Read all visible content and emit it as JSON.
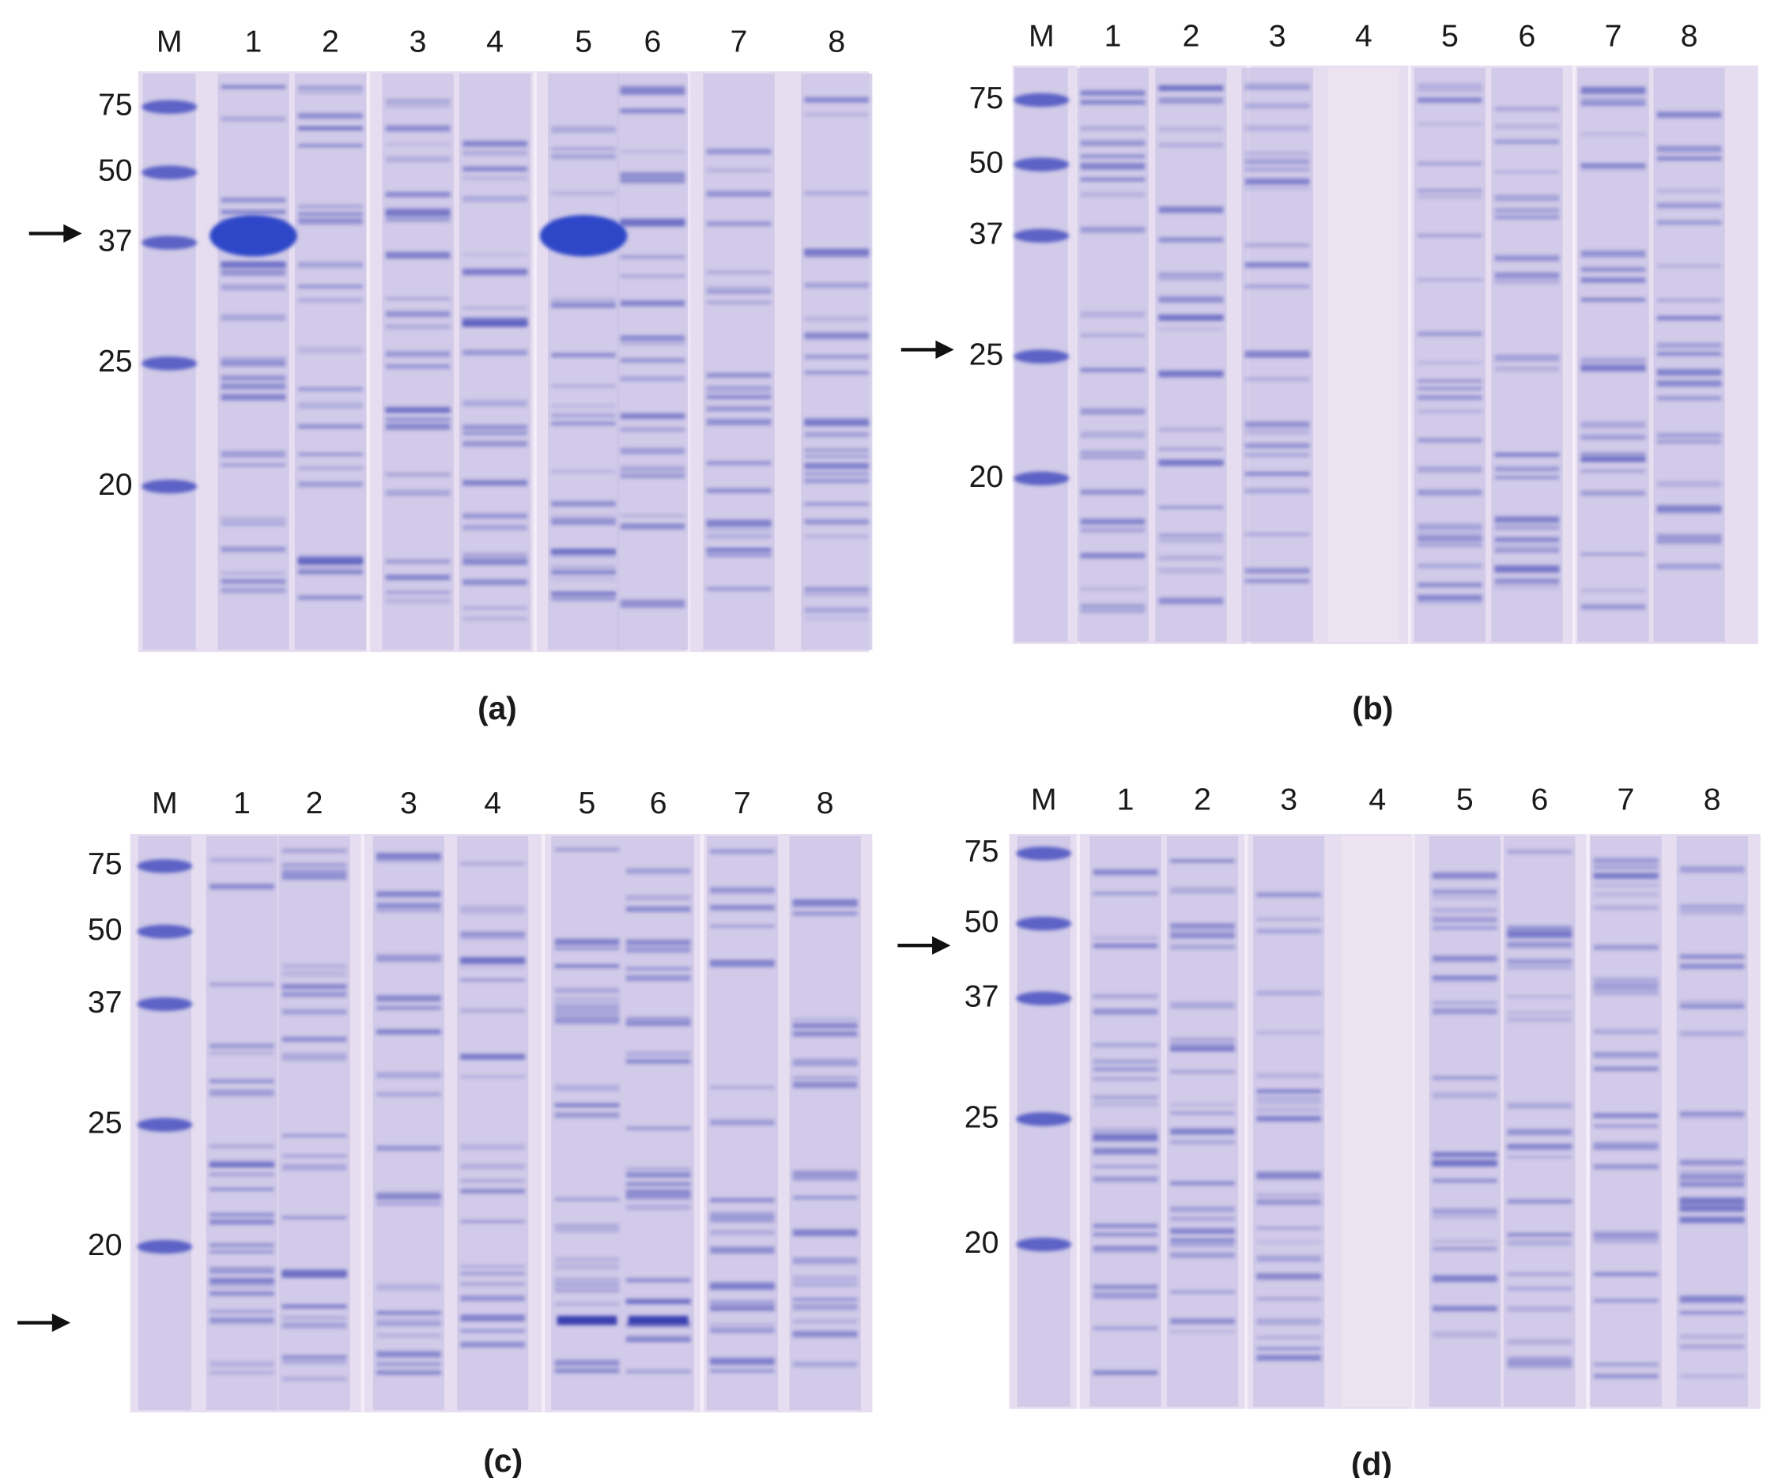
{
  "panels": [
    {
      "caption": "(a)",
      "lanes": [
        "M",
        "1",
        "2",
        "3",
        "4",
        "5",
        "6",
        "7",
        "8"
      ],
      "markers": [
        "75",
        "50",
        "37",
        "25",
        "20"
      ]
    },
    {
      "caption": "(b)",
      "lanes": [
        "M",
        "1",
        "2",
        "3",
        "4",
        "5",
        "6",
        "7",
        "8"
      ],
      "markers": [
        "75",
        "50",
        "37",
        "25",
        "20"
      ]
    },
    {
      "caption": "(c)",
      "lanes": [
        "M",
        "1",
        "2",
        "3",
        "4",
        "5",
        "6",
        "7",
        "8"
      ],
      "markers": [
        "75",
        "50",
        "37",
        "25",
        "20"
      ]
    },
    {
      "caption": "(d)",
      "lanes": [
        "M",
        "1",
        "2",
        "3",
        "4",
        "5",
        "6",
        "7",
        "8"
      ],
      "markers": [
        "75",
        "50",
        "37",
        "25",
        "20"
      ]
    }
  ]
}
